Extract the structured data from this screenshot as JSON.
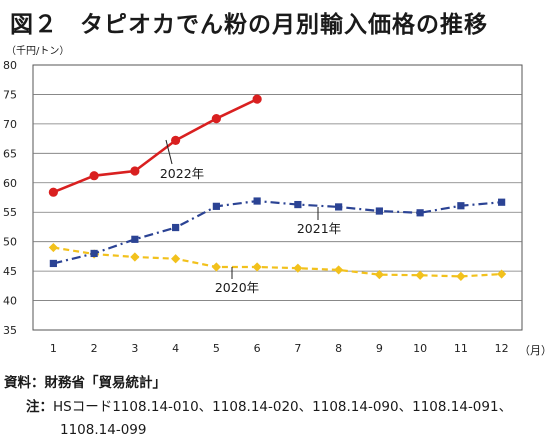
{
  "title": {
    "num": "図２",
    "text": "タピオカでん粉の月別輸入価格の推移"
  },
  "y_unit": "（千円/トン）",
  "x_unit": "（月）",
  "source": "資料：財務省「貿易統計」",
  "note": {
    "label": "注：",
    "line1": "HSコード1108.14-010、1108.14-020、1108.14-090、1108.14-091、",
    "line2": "1108.14-099"
  },
  "colors": {
    "s2020": "#f2c11c",
    "s2021": "#2b4394",
    "s2022": "#d92020"
  },
  "chart_data": {
    "type": "line",
    "title": "タピオカでん粉の月別輸入価格の推移",
    "xlabel": "（月）",
    "ylabel": "（千円/トン）",
    "categories": [
      "1",
      "2",
      "3",
      "4",
      "5",
      "6",
      "7",
      "8",
      "9",
      "10",
      "11",
      "12"
    ],
    "y_ticks": [
      "35",
      "40",
      "45",
      "50",
      "55",
      "60",
      "65",
      "70",
      "75",
      "80"
    ],
    "ylim": [
      35,
      80
    ],
    "grid": true,
    "series": [
      {
        "name": "2020年",
        "style": "dashed",
        "marker": "diamond",
        "values": [
          49.0,
          47.9,
          47.4,
          47.1,
          45.7,
          45.7,
          45.5,
          45.2,
          44.4,
          44.3,
          44.1,
          44.5
        ]
      },
      {
        "name": "2021年",
        "style": "dash-dot",
        "marker": "square",
        "values": [
          46.3,
          48.0,
          50.4,
          52.4,
          56.0,
          56.9,
          56.3,
          55.9,
          55.2,
          54.9,
          56.1,
          56.7
        ]
      },
      {
        "name": "2022年",
        "style": "solid",
        "marker": "circle",
        "values": [
          58.4,
          61.2,
          62.0,
          67.2,
          70.9,
          74.2,
          null,
          null,
          null,
          null,
          null,
          null
        ]
      }
    ]
  }
}
